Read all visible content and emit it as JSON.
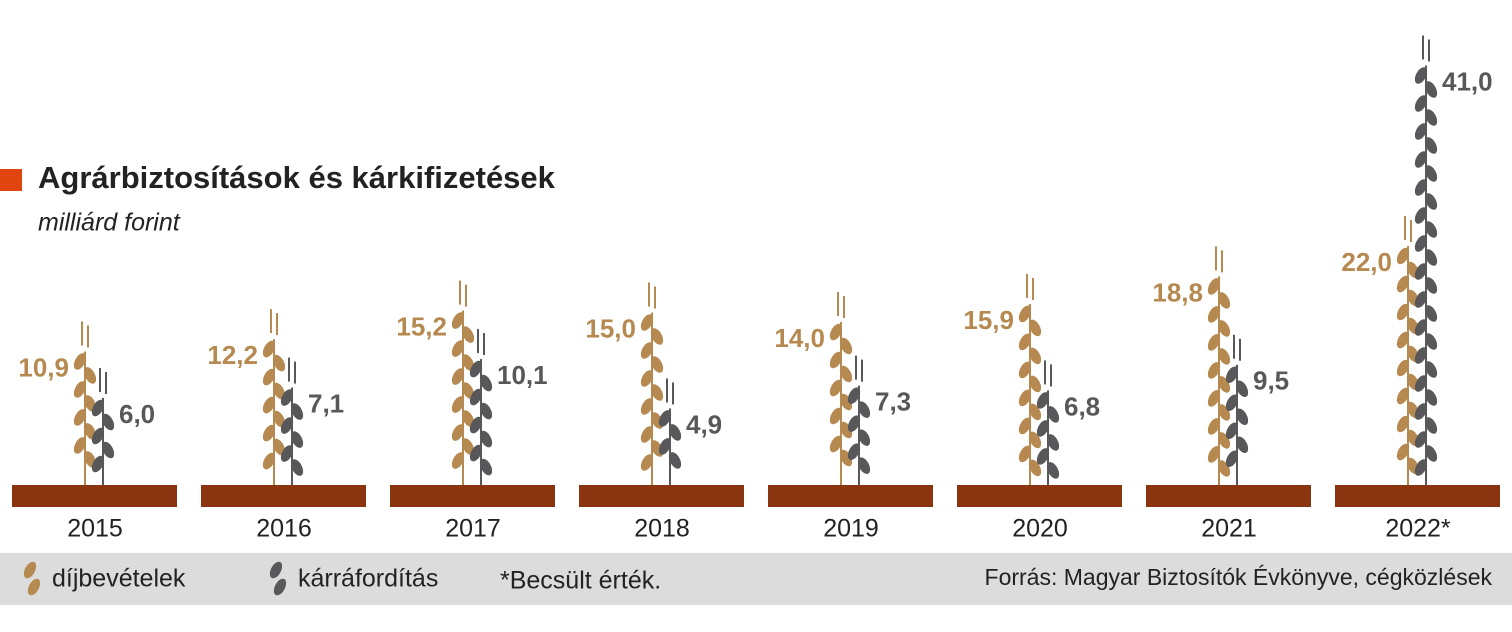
{
  "chart_data": {
    "type": "wheat",
    "title": "Agrárbiztosítások és kárkifizetések",
    "subtitle": "milliárd forint",
    "categories": [
      "2015",
      "2016",
      "2017",
      "2018",
      "2019",
      "2020",
      "2021",
      "2022*"
    ],
    "series": [
      {
        "name": "díjbevételek",
        "color": "#b5894f",
        "values": [
          10.9,
          12.2,
          15.2,
          15.0,
          14.0,
          15.9,
          18.8,
          22.0
        ],
        "value_labels": [
          "10,9",
          "12,2",
          "15,2",
          "15,0",
          "14,0",
          "15,9",
          "18,8",
          "22,0"
        ]
      },
      {
        "name": "kárráfordítás",
        "color": "#58585a",
        "values": [
          6.0,
          7.1,
          10.1,
          4.9,
          7.3,
          6.8,
          9.5,
          41.0
        ],
        "value_labels": [
          "6,0",
          "7,1",
          "10,1",
          "4,9",
          "7,3",
          "6,8",
          "9,5",
          "41,0"
        ]
      }
    ],
    "note": "*Becsült érték.",
    "source": "Forrás: Magyar Biztosítók Évkönyve, cégközlések"
  }
}
